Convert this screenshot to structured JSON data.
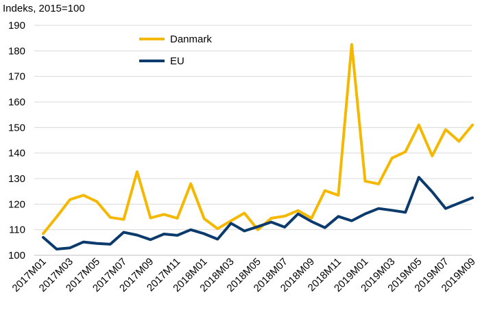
{
  "chart_data": {
    "type": "line",
    "ylabel": "Indeks, 2015=100",
    "ylim": [
      100,
      190
    ],
    "yticks": [
      100,
      110,
      120,
      130,
      140,
      150,
      160,
      170,
      180,
      190
    ],
    "grid": "horizontal",
    "legend_position": "top-center",
    "x": [
      "2017M01",
      "2017M02",
      "2017M03",
      "2017M04",
      "2017M05",
      "2017M06",
      "2017M07",
      "2017M08",
      "2017M09",
      "2017M10",
      "2017M11",
      "2017M12",
      "2018M01",
      "2018M02",
      "2018M03",
      "2018M04",
      "2018M05",
      "2018M06",
      "2018M07",
      "2018M08",
      "2018M09",
      "2018M10",
      "2018M11",
      "2018M12",
      "2019M01",
      "2019M02",
      "2019M03",
      "2019M04",
      "2019M05",
      "2019M06",
      "2019M07",
      "2019M08",
      "2019M09"
    ],
    "x_tick_labels": [
      "2017M01",
      "2017M03",
      "2017M05",
      "2017M07",
      "2017M09",
      "2017M11",
      "2018M01",
      "2018M03",
      "2018M05",
      "2018M07",
      "2018M09",
      "2018M11",
      "2019M01",
      "2019M03",
      "2019M05",
      "2019M07",
      "2019M09"
    ],
    "series": [
      {
        "name": "Danmark",
        "color": "#F5B800",
        "values": [
          108.5,
          115.0,
          121.8,
          123.5,
          121.0,
          114.8,
          114.0,
          132.7,
          114.6,
          116.0,
          114.5,
          128.0,
          114.3,
          110.4,
          113.5,
          116.5,
          110.0,
          114.5,
          115.3,
          117.5,
          114.5,
          125.3,
          123.5,
          182.5,
          129.0,
          127.9,
          138.0,
          140.5,
          151.0,
          138.9,
          149.2,
          144.6,
          151.0
        ]
      },
      {
        "name": "EU",
        "color": "#0B3A6C",
        "values": [
          107.0,
          102.4,
          102.9,
          105.2,
          104.6,
          104.3,
          109.0,
          107.9,
          106.1,
          108.3,
          107.8,
          110.0,
          108.4,
          106.3,
          112.5,
          109.5,
          111.2,
          113.0,
          111.0,
          116.2,
          113.2,
          110.8,
          115.2,
          113.5,
          116.2,
          118.3,
          117.6,
          116.8,
          130.5,
          124.8,
          118.3,
          120.4,
          122.5
        ]
      }
    ]
  }
}
